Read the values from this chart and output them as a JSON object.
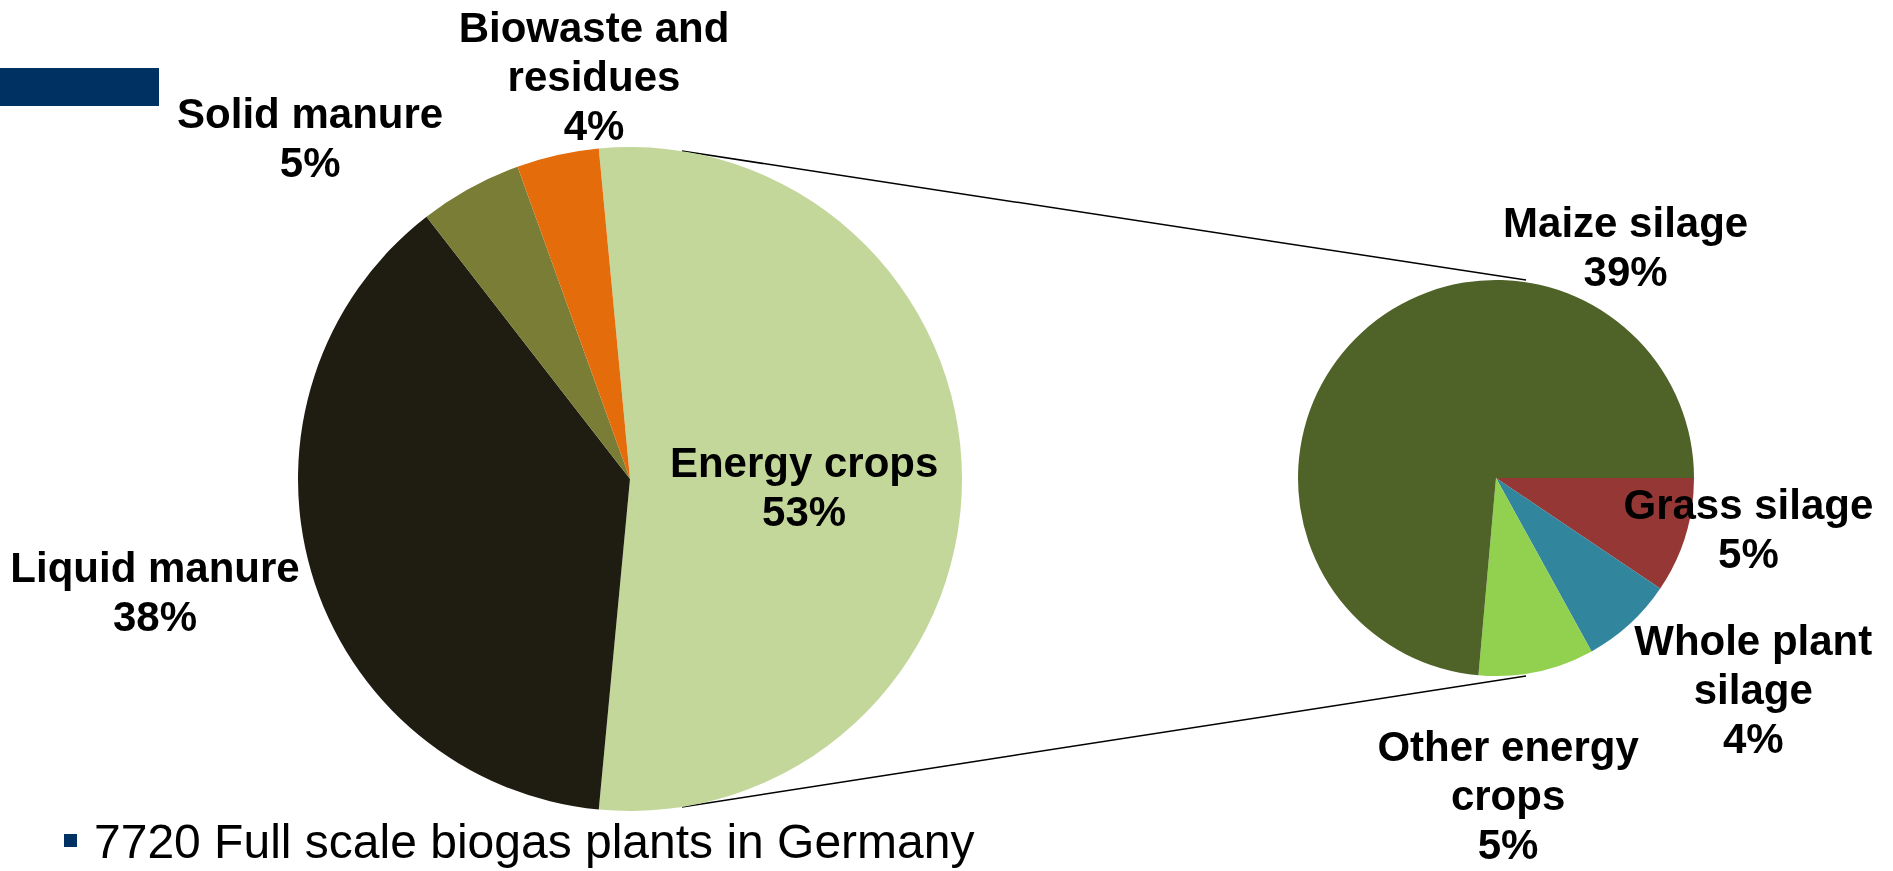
{
  "chart_data": [
    {
      "type": "pie",
      "categories": [
        "Energy crops",
        "Liquid manure",
        "Solid manure",
        "Biowaste and residues"
      ],
      "values": [
        53,
        38,
        5,
        4
      ],
      "value_labels": [
        "53%",
        "38%",
        "5%",
        "4%"
      ],
      "colors": [
        "#c4d79b",
        "#1f1d11",
        "#7a7d35",
        "#e46c0a"
      ],
      "annotations": [
        "7720 Full scale biogas plants in Germany"
      ]
    },
    {
      "type": "pie",
      "categories": [
        "Grass silage",
        "Whole plant silage",
        "Other energy crops",
        "Maize silage"
      ],
      "values": [
        5,
        4,
        5,
        39
      ],
      "value_labels": [
        "5%",
        "4%",
        "5%",
        "39%"
      ],
      "colors": [
        "#953735",
        "#31859c",
        "#92d050",
        "#4f6228"
      ]
    }
  ]
}
